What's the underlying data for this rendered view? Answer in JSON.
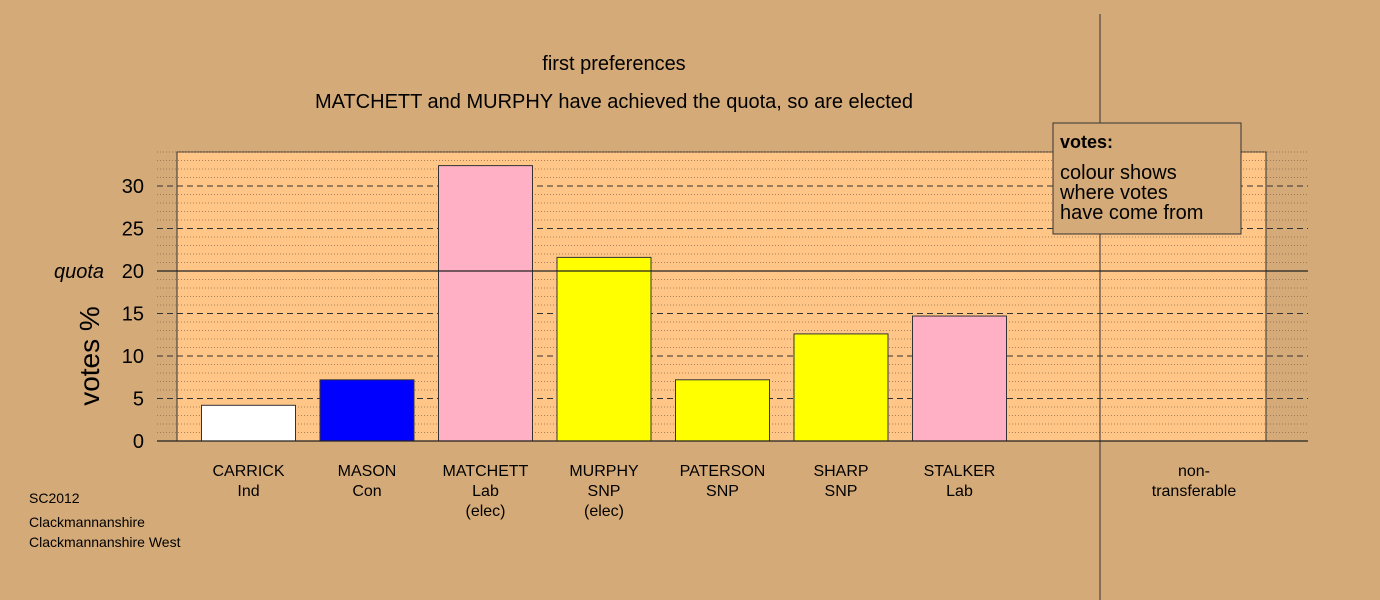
{
  "chart_data": {
    "type": "bar",
    "title": "first preferences",
    "subtitle": "MATCHETT and MURPHY have achieved the quota, so are elected",
    "ylabel": "votes %",
    "ylim": [
      0,
      35
    ],
    "yticks": [
      0,
      5,
      10,
      15,
      20,
      25,
      30
    ],
    "quota": 20,
    "quota_label": "quota",
    "categories": [
      {
        "lines": [
          "CARRICK",
          "Ind"
        ],
        "value": 4.2,
        "color": "#ffffff"
      },
      {
        "lines": [
          "MASON",
          "Con"
        ],
        "value": 7.2,
        "color": "#0000ff"
      },
      {
        "lines": [
          "MATCHETT",
          "Lab",
          "(elec)"
        ],
        "value": 32.4,
        "color": "#ffb0c4"
      },
      {
        "lines": [
          "MURPHY",
          "SNP",
          "(elec)"
        ],
        "value": 21.6,
        "color": "#ffff00"
      },
      {
        "lines": [
          "PATERSON",
          "SNP"
        ],
        "value": 7.2,
        "color": "#ffff00"
      },
      {
        "lines": [
          "SHARP",
          "SNP"
        ],
        "value": 12.6,
        "color": "#ffff00"
      },
      {
        "lines": [
          "STALKER",
          "Lab"
        ],
        "value": 14.7,
        "color": "#ffb0c4"
      }
    ],
    "non_transferable": {
      "lines": [
        "non-",
        "transferable"
      ],
      "value": 0
    },
    "legend": {
      "title": "votes:",
      "lines": [
        "colour shows",
        "where votes",
        "have come from"
      ],
      "position": "top-right"
    },
    "grid": true
  },
  "footer": {
    "lines": [
      "SC2012",
      "Clackmannanshire",
      "Clackmannanshire West"
    ]
  },
  "colors": {
    "background": "#d4aa78",
    "plot_area": "#ffc688"
  }
}
